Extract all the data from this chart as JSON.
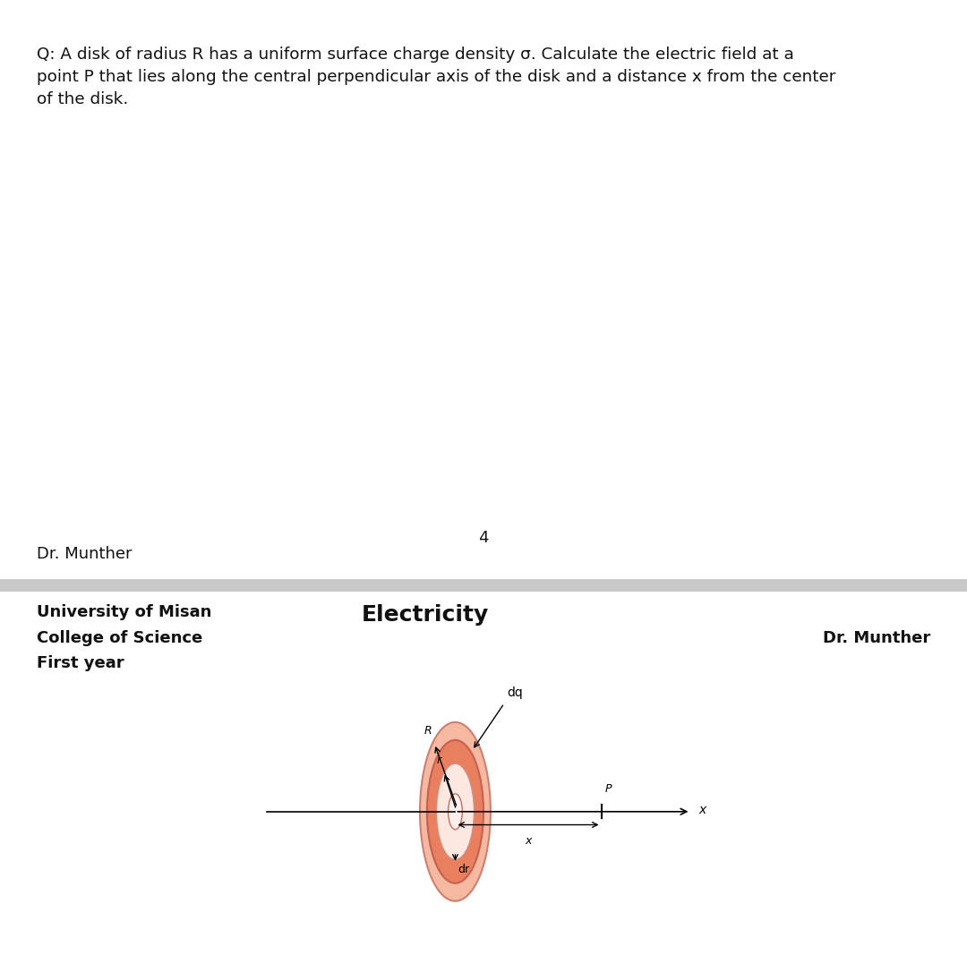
{
  "question_text": "Q: A disk of radius R has a uniform surface charge density σ. Calculate the electric field at a\npoint P that lies along the central perpendicular axis of the disk and a distance x from the center\nof the disk.",
  "page_number": "4",
  "bottom_left_name": "Dr. Munther",
  "footer_left_line1": "University of Misan",
  "footer_left_line2": "College of Science",
  "footer_left_line3": "First year",
  "footer_center": "Electricity",
  "footer_right": "Dr. Munther",
  "bg_color": "#ffffff",
  "separator_color": "#c8c8c8",
  "disk_outer_face": "#f5b8a0",
  "disk_outer_edge": "#cd8070",
  "disk_ring_face": "#e88060",
  "disk_ring_edge": "#c86050",
  "disk_inner_face": "#fce8e0",
  "disk_inner_edge": "#d09080",
  "disk_hole_face": "#fdf0ec",
  "disk_hole_edge": "#c07060"
}
